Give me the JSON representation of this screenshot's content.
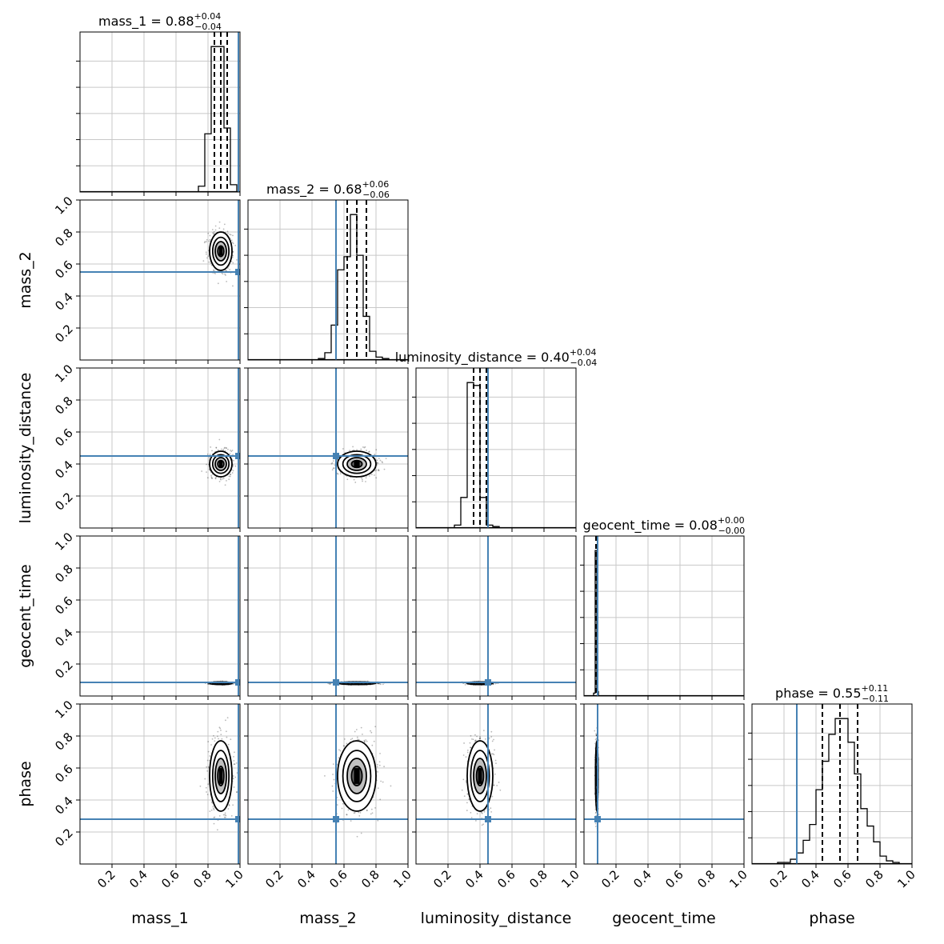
{
  "chart_data": {
    "type": "corner",
    "parameters": [
      "mass_1",
      "mass_2",
      "luminosity_distance",
      "geocent_time",
      "phase"
    ],
    "axis_range": [
      0,
      1
    ],
    "tick_values": [
      0.2,
      0.4,
      0.6,
      0.8,
      1.0
    ],
    "tick_labels": [
      "0.2",
      "0.4",
      "0.6",
      "0.8",
      "1.0"
    ],
    "grid": true,
    "truth_color": "#4682b4",
    "summary_titles": [
      {
        "prefix": "mass_1 = 0.88",
        "plus": "+0.04",
        "minus": "−0.04"
      },
      {
        "prefix": "mass_2 = 0.68",
        "plus": "+0.06",
        "minus": "−0.06"
      },
      {
        "prefix": "luminosity_distance = 0.40",
        "plus": "+0.04",
        "minus": "−0.04"
      },
      {
        "prefix": "geocent_time = 0.08",
        "plus": "+0.00",
        "minus": "−0.00"
      },
      {
        "prefix": "phase = 0.55",
        "plus": "+0.11",
        "minus": "−0.11"
      }
    ],
    "medians": [
      0.88,
      0.68,
      0.4,
      0.08,
      0.55
    ],
    "quantiles": [
      [
        0.84,
        0.88,
        0.92
      ],
      [
        0.62,
        0.68,
        0.74
      ],
      [
        0.36,
        0.4,
        0.44
      ],
      [
        0.075,
        0.08,
        0.085
      ],
      [
        0.44,
        0.55,
        0.66
      ]
    ],
    "truths": [
      0.99,
      0.55,
      0.45,
      0.085,
      0.28
    ],
    "sigmas": [
      0.035,
      0.06,
      0.04,
      0.004,
      0.11
    ],
    "histograms": [
      {
        "bin_edges": [
          0.74,
          0.78,
          0.82,
          0.86,
          0.9,
          0.94,
          0.98,
          1.0
        ],
        "counts": [
          0.04,
          0.4,
          1.0,
          1.0,
          0.44,
          0.05,
          0
        ]
      },
      {
        "bin_edges": [
          0.44,
          0.48,
          0.52,
          0.56,
          0.6,
          0.64,
          0.68,
          0.72,
          0.76,
          0.8,
          0.84,
          0.88,
          0.92
        ],
        "counts": [
          0.01,
          0.05,
          0.24,
          0.62,
          0.71,
          1.0,
          0.72,
          0.3,
          0.06,
          0.02,
          0.01,
          0
        ]
      },
      {
        "bin_edges": [
          0.24,
          0.28,
          0.32,
          0.36,
          0.4,
          0.44,
          0.48,
          0.52,
          0.56
        ],
        "counts": [
          0.02,
          0.21,
          1.0,
          0.98,
          0.21,
          0.02,
          0.01,
          0
        ]
      },
      {
        "bin_edges": [
          0.06,
          0.07,
          0.08,
          0.09,
          0.1
        ],
        "counts": [
          0.02,
          1.0,
          0.03,
          0
        ]
      },
      {
        "bin_edges": [
          0.12,
          0.16,
          0.2,
          0.24,
          0.28,
          0.32,
          0.36,
          0.4,
          0.44,
          0.48,
          0.52,
          0.56,
          0.6,
          0.64,
          0.68,
          0.72,
          0.76,
          0.8,
          0.84,
          0.88,
          0.92,
          0.96
        ],
        "counts": [
          0,
          0.01,
          0.01,
          0.03,
          0.07,
          0.15,
          0.25,
          0.47,
          0.65,
          0.82,
          0.92,
          0.92,
          0.77,
          0.57,
          0.35,
          0.24,
          0.14,
          0.05,
          0.02,
          0.01,
          0
        ]
      }
    ]
  }
}
